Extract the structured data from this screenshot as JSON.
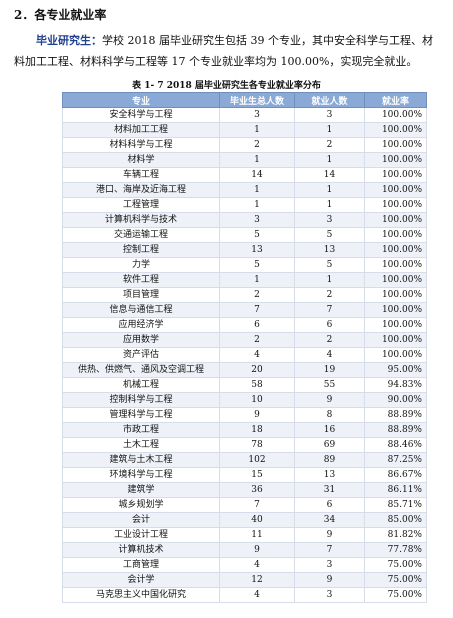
{
  "heading": "2．各专业就业率",
  "paragraph": {
    "lead": "毕业研究生：",
    "text": "学校 2018 届毕业研究生包括 39 个专业，其中安全科学与工程、材料加工工程、材料科学与工程等 17 个专业就业率均为 100.00%，实现完全就业。"
  },
  "caption": "表 1- 7  2018 届毕业研究生各专业就业率分布",
  "table": {
    "headers": [
      "专业",
      "毕业生总人数",
      "就业人数",
      "就业率"
    ],
    "rows": [
      [
        "安全科学与工程",
        "3",
        "3",
        "100.00%"
      ],
      [
        "材料加工工程",
        "1",
        "1",
        "100.00%"
      ],
      [
        "材料科学与工程",
        "2",
        "2",
        "100.00%"
      ],
      [
        "材料学",
        "1",
        "1",
        "100.00%"
      ],
      [
        "车辆工程",
        "14",
        "14",
        "100.00%"
      ],
      [
        "港口、海岸及近海工程",
        "1",
        "1",
        "100.00%"
      ],
      [
        "工程管理",
        "1",
        "1",
        "100.00%"
      ],
      [
        "计算机科学与技术",
        "3",
        "3",
        "100.00%"
      ],
      [
        "交通运输工程",
        "5",
        "5",
        "100.00%"
      ],
      [
        "控制工程",
        "13",
        "13",
        "100.00%"
      ],
      [
        "力学",
        "5",
        "5",
        "100.00%"
      ],
      [
        "软件工程",
        "1",
        "1",
        "100.00%"
      ],
      [
        "项目管理",
        "2",
        "2",
        "100.00%"
      ],
      [
        "信息与通信工程",
        "7",
        "7",
        "100.00%"
      ],
      [
        "应用经济学",
        "6",
        "6",
        "100.00%"
      ],
      [
        "应用数学",
        "2",
        "2",
        "100.00%"
      ],
      [
        "资产评估",
        "4",
        "4",
        "100.00%"
      ],
      [
        "供热、供燃气、通风及空调工程",
        "20",
        "19",
        "95.00%"
      ],
      [
        "机械工程",
        "58",
        "55",
        "94.83%"
      ],
      [
        "控制科学与工程",
        "10",
        "9",
        "90.00%"
      ],
      [
        "管理科学与工程",
        "9",
        "8",
        "88.89%"
      ],
      [
        "市政工程",
        "18",
        "16",
        "88.89%"
      ],
      [
        "土木工程",
        "78",
        "69",
        "88.46%"
      ],
      [
        "建筑与土木工程",
        "102",
        "89",
        "87.25%"
      ],
      [
        "环境科学与工程",
        "15",
        "13",
        "86.67%"
      ],
      [
        "建筑学",
        "36",
        "31",
        "86.11%"
      ],
      [
        "城乡规划学",
        "7",
        "6",
        "85.71%"
      ],
      [
        "会计",
        "40",
        "34",
        "85.00%"
      ],
      [
        "工业设计工程",
        "11",
        "9",
        "81.82%"
      ],
      [
        "计算机技术",
        "9",
        "7",
        "77.78%"
      ],
      [
        "工商管理",
        "4",
        "3",
        "75.00%"
      ],
      [
        "会计学",
        "12",
        "9",
        "75.00%"
      ],
      [
        "马克思主义中国化研究",
        "4",
        "3",
        "75.00%"
      ]
    ]
  }
}
